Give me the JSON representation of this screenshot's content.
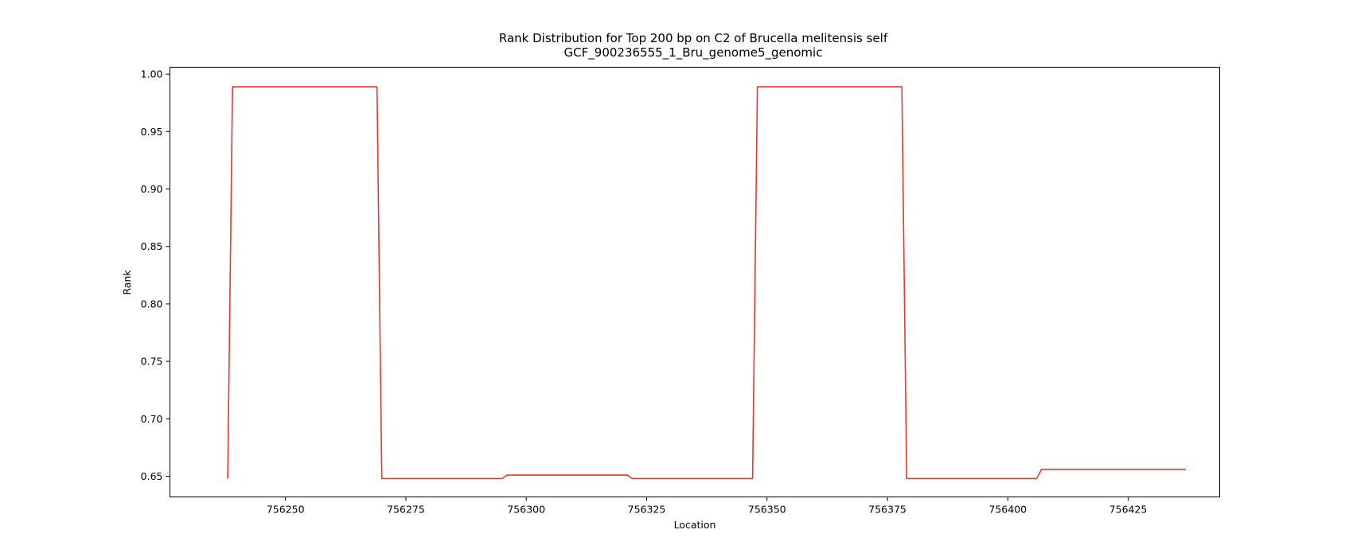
{
  "chart_data": {
    "type": "line",
    "title_line1": "Rank Distribution for Top 200 bp on C2 of Brucella melitensis self",
    "title_line2": "GCF_900236555_1_Bru_genome5_genomic",
    "xlabel": "Location",
    "ylabel": "Rank",
    "xlim": [
      756226,
      756444
    ],
    "ylim": [
      0.632,
      1.006
    ],
    "x_ticks": [
      756250,
      756275,
      756300,
      756325,
      756350,
      756375,
      756400,
      756425
    ],
    "x_tick_labels": [
      "756250",
      "756275",
      "756300",
      "756325",
      "756350",
      "756375",
      "756400",
      "756425"
    ],
    "y_ticks": [
      0.65,
      0.7,
      0.75,
      0.8,
      0.85,
      0.9,
      0.95,
      1.0
    ],
    "y_tick_labels": [
      "0.65",
      "0.70",
      "0.75",
      "0.80",
      "0.85",
      "0.90",
      "0.95",
      "1.00"
    ],
    "grid": false,
    "series": [
      {
        "color": "#e8372c",
        "x": [
          756238,
          756239,
          756269,
          756270,
          756295,
          756296,
          756321,
          756322,
          756347,
          756348,
          756378,
          756379,
          756406,
          756407,
          756437
        ],
        "y": [
          0.648,
          0.989,
          0.989,
          0.648,
          0.648,
          0.651,
          0.651,
          0.648,
          0.648,
          0.989,
          0.989,
          0.648,
          0.648,
          0.656,
          0.656
        ]
      }
    ]
  }
}
